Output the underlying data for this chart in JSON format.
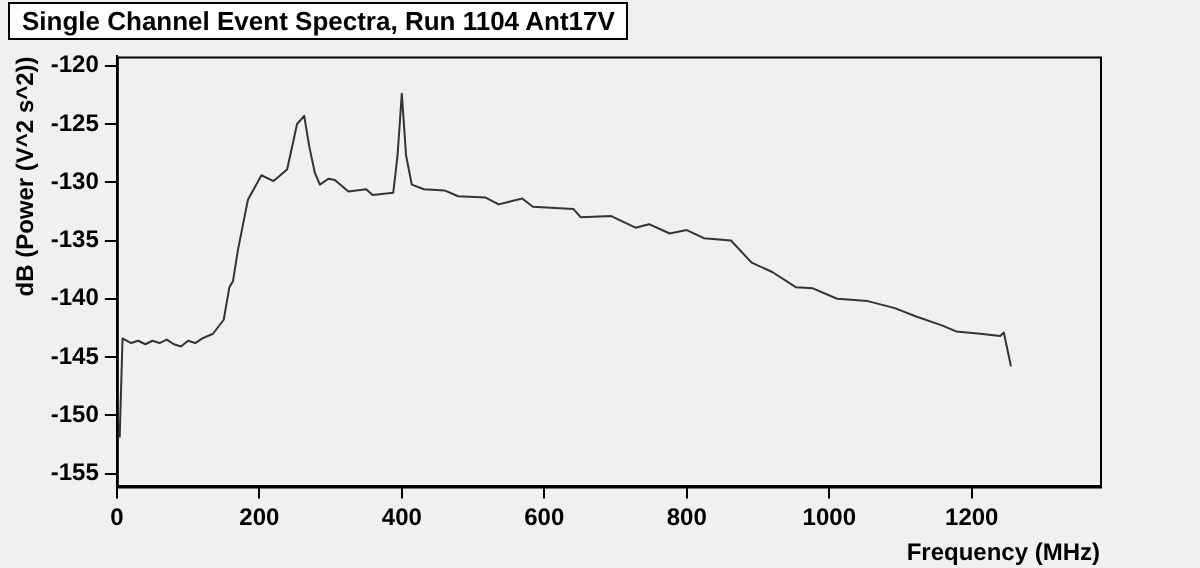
{
  "chart_data": {
    "type": "line",
    "title": "Single Channel Event Spectra, Run 1104 Ant17V",
    "xlabel": "Frequency (MHz)",
    "ylabel": "dB (Power (V^2 s^2))",
    "x": [
      4,
      8,
      20,
      30,
      40,
      50,
      60,
      70,
      80,
      90,
      100,
      110,
      120,
      135,
      150,
      158,
      163,
      170,
      184,
      203,
      220,
      239,
      253,
      263,
      270,
      278,
      285,
      297,
      306,
      325,
      350,
      359,
      388,
      394,
      400,
      406,
      414,
      431,
      460,
      479,
      517,
      536,
      569,
      584,
      641,
      651,
      694,
      728,
      747,
      776,
      800,
      824,
      862,
      891,
      920,
      953,
      977,
      1011,
      1054,
      1092,
      1121,
      1159,
      1178,
      1212,
      1240,
      1245,
      1255
    ],
    "series": [
      {
        "color": "#333333",
        "values": [
          -151.9,
          -143.4,
          -143.8,
          -143.6,
          -143.9,
          -143.6,
          -143.8,
          -143.5,
          -143.9,
          -144.1,
          -143.6,
          -143.8,
          -143.4,
          -143.0,
          -141.8,
          -139.0,
          -138.5,
          -135.8,
          -131.5,
          -129.4,
          -129.9,
          -128.9,
          -125.0,
          -124.3,
          -126.9,
          -129.2,
          -130.2,
          -129.7,
          -129.8,
          -130.8,
          -130.6,
          -131.1,
          -130.9,
          -127.7,
          -122.4,
          -127.7,
          -130.2,
          -130.6,
          -130.7,
          -131.2,
          -131.3,
          -131.9,
          -131.4,
          -132.1,
          -132.3,
          -133.0,
          -132.9,
          -133.9,
          -133.6,
          -134.4,
          -134.1,
          -134.8,
          -135.0,
          -136.9,
          -137.7,
          -139.0,
          -139.1,
          -140.0,
          -140.2,
          -140.8,
          -141.5,
          -142.3,
          -142.8,
          -143.0,
          -143.2,
          -142.9,
          -145.8
        ]
      }
    ],
    "xlim": [
      0,
      1380
    ],
    "ylim": [
      -156.1,
      -119.2
    ],
    "xticks": [
      0,
      200,
      400,
      600,
      800,
      1000,
      1200
    ],
    "yticks": [
      -155,
      -150,
      -145,
      -140,
      -135,
      -130,
      -125,
      -120
    ],
    "grid": false,
    "legend": false,
    "marker": "none",
    "line_style": "solid"
  }
}
